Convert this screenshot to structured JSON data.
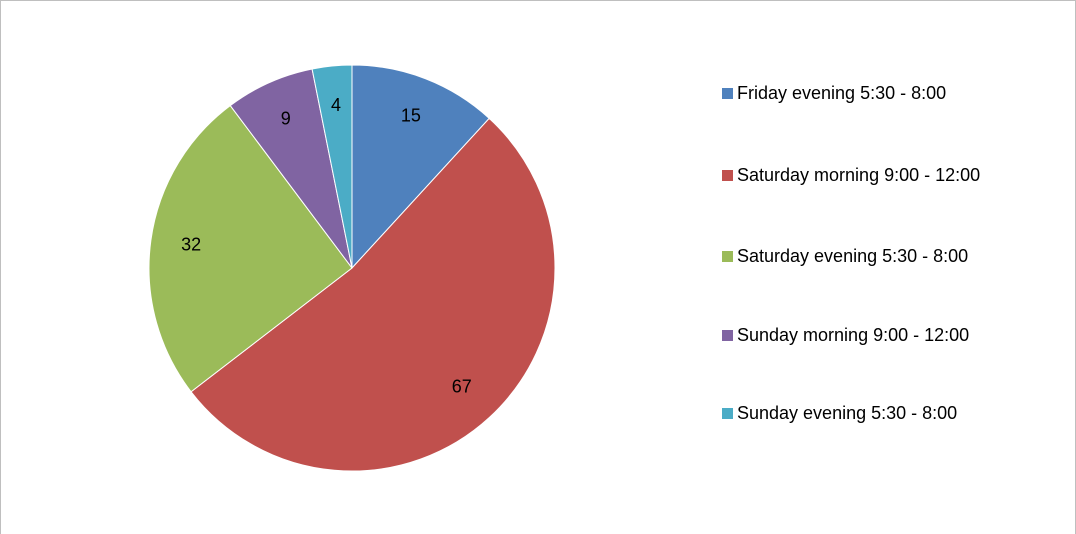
{
  "chart_data": {
    "type": "pie",
    "categories": [
      "Friday evening 5:30 - 8:00",
      "Saturday morning 9:00 - 12:00",
      "Saturday evening 5:30 - 8:00",
      "Sunday morning 9:00 - 12:00",
      "Sunday evening 5:30 - 8:00"
    ],
    "values": [
      15,
      67,
      32,
      9,
      4
    ],
    "colors": [
      "#4f81bd",
      "#c0504d",
      "#9bbb59",
      "#8064a2",
      "#4bacc6"
    ],
    "legend": "right"
  }
}
